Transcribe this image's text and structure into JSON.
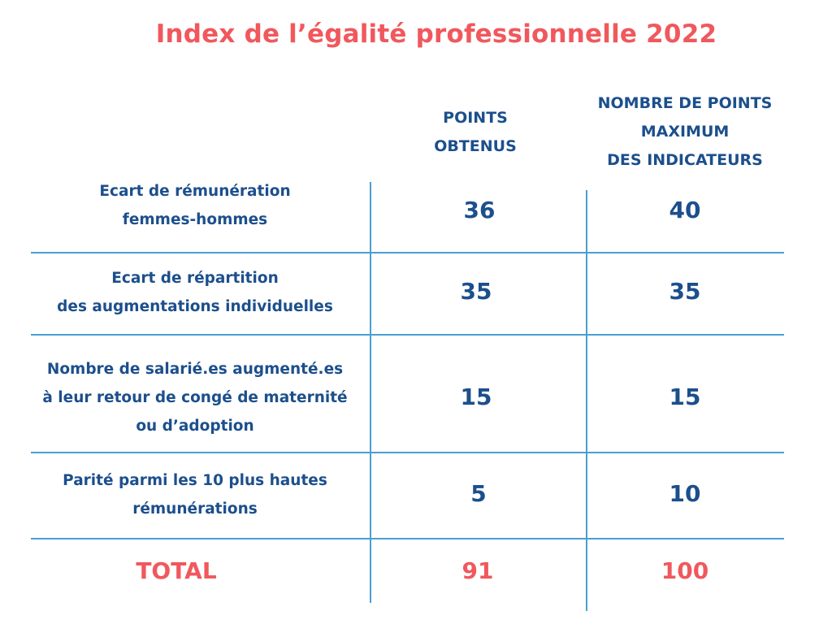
{
  "title": "Index de l’égalité professionnelle 2022",
  "columns": {
    "obtained": "POINTS\nOBTENUS",
    "maximum": "NOMBRE DE POINTS\nMAXIMUM\nDES INDICATEURS"
  },
  "rows": [
    {
      "label": "Ecart de rémunération\nfemmes-hommes",
      "obtained": "36",
      "maximum": "40"
    },
    {
      "label": "Ecart de répartition\ndes augmentations individuelles",
      "obtained": "35",
      "maximum": "35"
    },
    {
      "label": "Nombre de salarié.es augmenté.es\nà leur retour de congé de maternité\nou d’adoption",
      "obtained": "15",
      "maximum": "15"
    },
    {
      "label": "Parité parmi les 10 plus hautes\nrémunérations",
      "obtained": "5",
      "maximum": "10"
    }
  ],
  "total": {
    "label": "TOTAL",
    "obtained": "91",
    "maximum": "100"
  },
  "colors": {
    "title": "#f0585d",
    "text": "#1c4f8c",
    "lines": "#4a9fd0"
  }
}
